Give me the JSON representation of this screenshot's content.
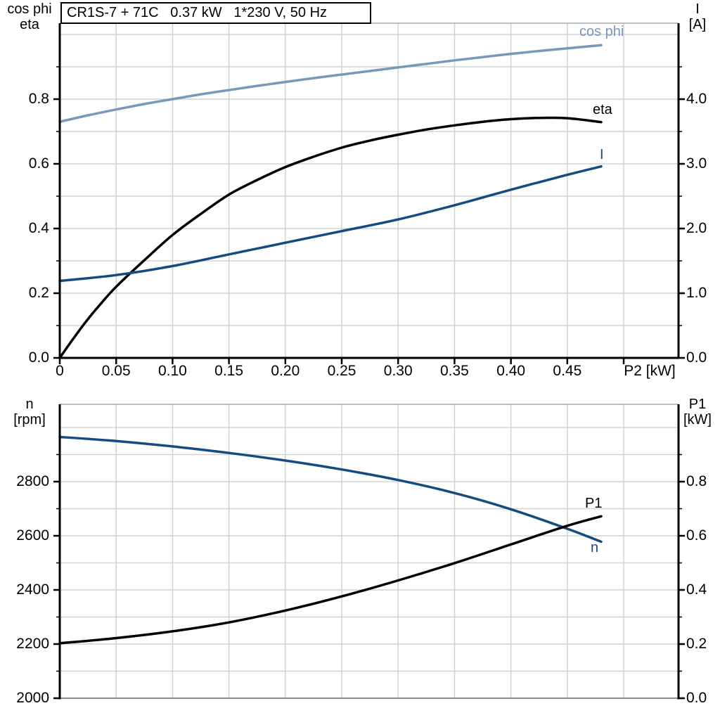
{
  "colors": {
    "grid": "#d2d2d2",
    "border_top": "#a6a6a6",
    "border_bottom_gray": "#8c8c8c",
    "axis": "#000000",
    "light_blue": "#7a98ba",
    "dark_blue": "#164a80",
    "black": "#000000"
  },
  "chart_data": [
    {
      "type": "line",
      "title": "CR1S-7 + 71C   0.37 kW   1*230 V, 50 Hz",
      "x_axis": {
        "label": "P2 [kW]",
        "min": 0,
        "max": 0.5486,
        "tick_step": 0.05,
        "tick_labels": [
          "0",
          "0.05",
          "0.10",
          "0.15",
          "0.20",
          "0.25",
          "0.30",
          "0.35",
          "0.40",
          "0.45"
        ]
      },
      "left_axis": {
        "label_lines": [
          "cos phi",
          "eta"
        ],
        "min": 0,
        "max": 1.0348,
        "major": 0.2,
        "minor": 0.1,
        "labels": [
          "0.0",
          "0.2",
          "0.4",
          "0.6",
          "0.8"
        ]
      },
      "right_axis": {
        "label_lines": [
          "I",
          "[A]"
        ],
        "min": 0,
        "max": 5.174,
        "major": 1.0,
        "minor": 0.5,
        "labels": [
          "0.0",
          "1.0",
          "2.0",
          "3.0",
          "4.0"
        ]
      },
      "grid": true,
      "legend_position": "inline-labels",
      "series": [
        {
          "name": "cos phi",
          "axis": "left",
          "color": "#7a98ba",
          "points": [
            [
              0,
              0.73
            ],
            [
              0.025,
              0.75
            ],
            [
              0.05,
              0.768
            ],
            [
              0.075,
              0.785
            ],
            [
              0.1,
              0.8
            ],
            [
              0.125,
              0.815
            ],
            [
              0.15,
              0.828
            ],
            [
              0.175,
              0.841
            ],
            [
              0.2,
              0.853
            ],
            [
              0.225,
              0.865
            ],
            [
              0.25,
              0.876
            ],
            [
              0.275,
              0.887
            ],
            [
              0.3,
              0.898
            ],
            [
              0.325,
              0.909
            ],
            [
              0.35,
              0.92
            ],
            [
              0.375,
              0.93
            ],
            [
              0.4,
              0.94
            ],
            [
              0.425,
              0.949
            ],
            [
              0.45,
              0.957
            ],
            [
              0.48,
              0.967
            ]
          ]
        },
        {
          "name": "eta",
          "axis": "left",
          "color": "#000000",
          "points": [
            [
              0,
              0.0
            ],
            [
              0.0125,
              0.062
            ],
            [
              0.025,
              0.12
            ],
            [
              0.0375,
              0.172
            ],
            [
              0.05,
              0.22
            ],
            [
              0.075,
              0.302
            ],
            [
              0.1,
              0.38
            ],
            [
              0.125,
              0.445
            ],
            [
              0.15,
              0.505
            ],
            [
              0.175,
              0.55
            ],
            [
              0.2,
              0.59
            ],
            [
              0.225,
              0.622
            ],
            [
              0.25,
              0.65
            ],
            [
              0.275,
              0.672
            ],
            [
              0.3,
              0.69
            ],
            [
              0.325,
              0.706
            ],
            [
              0.35,
              0.719
            ],
            [
              0.375,
              0.73
            ],
            [
              0.4,
              0.738
            ],
            [
              0.425,
              0.742
            ],
            [
              0.45,
              0.741
            ],
            [
              0.48,
              0.729
            ]
          ]
        },
        {
          "name": "I",
          "axis": "right",
          "color": "#164a80",
          "points": [
            [
              0,
              1.19
            ],
            [
              0.05,
              1.28
            ],
            [
              0.1,
              1.42
            ],
            [
              0.15,
              1.6
            ],
            [
              0.2,
              1.78
            ],
            [
              0.25,
              1.96
            ],
            [
              0.3,
              2.14
            ],
            [
              0.35,
              2.36
            ],
            [
              0.4,
              2.6
            ],
            [
              0.45,
              2.83
            ],
            [
              0.48,
              2.96
            ]
          ]
        }
      ]
    },
    {
      "type": "line",
      "x_axis": {
        "label": "",
        "min": 0,
        "max": 0.5486,
        "tick_step": 0.05,
        "tick_labels": []
      },
      "left_axis": {
        "label_lines": [
          "n",
          "[rpm]"
        ],
        "min": 2000,
        "max": 3085.7,
        "major": 200,
        "minor": 100,
        "labels": [
          "2000",
          "2200",
          "2400",
          "2600",
          "2800"
        ]
      },
      "right_axis": {
        "label_lines": [
          "P1",
          "[kW]"
        ],
        "min": 0,
        "max": 1.0857,
        "major": 0.2,
        "minor": 0.1,
        "labels": [
          "0.0",
          "0.2",
          "0.4",
          "0.6",
          "0.8"
        ]
      },
      "grid": true,
      "legend_position": "inline-labels",
      "series": [
        {
          "name": "n",
          "axis": "left",
          "color": "#164a80",
          "points": [
            [
              0,
              2965
            ],
            [
              0.05,
              2950
            ],
            [
              0.1,
              2930
            ],
            [
              0.15,
              2906
            ],
            [
              0.2,
              2878
            ],
            [
              0.25,
              2845
            ],
            [
              0.3,
              2806
            ],
            [
              0.35,
              2758
            ],
            [
              0.4,
              2698
            ],
            [
              0.45,
              2626
            ],
            [
              0.48,
              2578
            ]
          ]
        },
        {
          "name": "P1",
          "axis": "right",
          "color": "#000000",
          "points": [
            [
              0,
              0.203
            ],
            [
              0.05,
              0.222
            ],
            [
              0.1,
              0.247
            ],
            [
              0.15,
              0.28
            ],
            [
              0.2,
              0.324
            ],
            [
              0.25,
              0.376
            ],
            [
              0.3,
              0.435
            ],
            [
              0.35,
              0.499
            ],
            [
              0.4,
              0.568
            ],
            [
              0.45,
              0.637
            ],
            [
              0.48,
              0.672
            ]
          ]
        }
      ]
    }
  ]
}
